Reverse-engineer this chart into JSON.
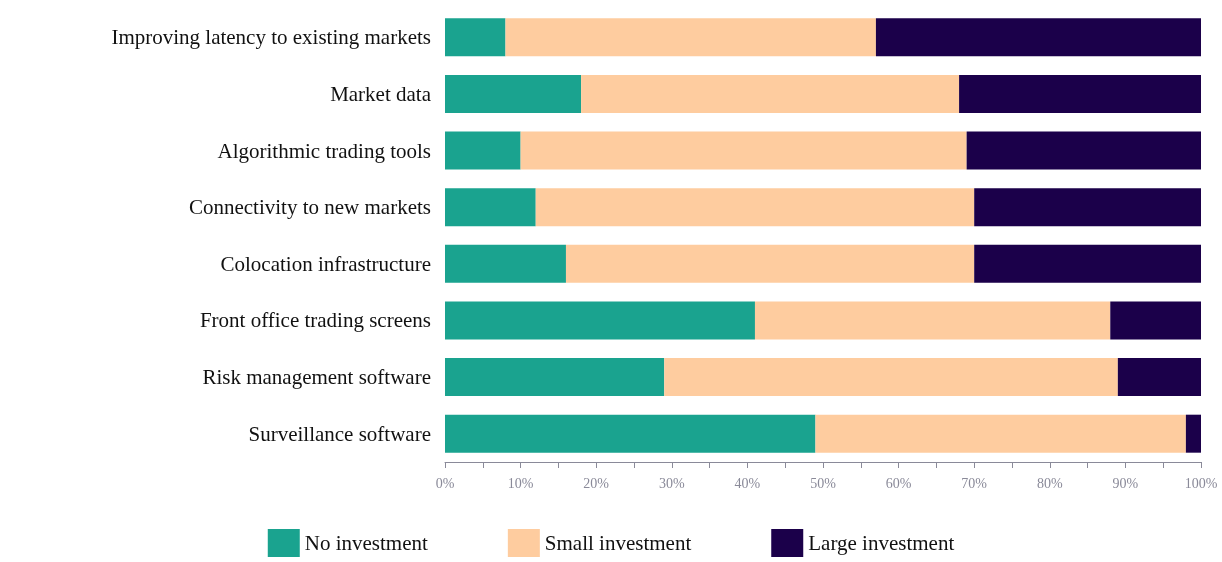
{
  "chart_data": {
    "type": "bar",
    "orientation": "horizontal",
    "stacked": true,
    "categories": [
      "Improving latency to existing markets",
      "Market data",
      "Algorithmic trading tools",
      "Connectivity to new markets",
      "Colocation infrastructure",
      "Front office trading screens",
      "Risk management software",
      "Surveillance software"
    ],
    "series": [
      {
        "name": "No investment",
        "color": "#1aa38f",
        "values": [
          8,
          18,
          10,
          12,
          16,
          41,
          29,
          49
        ]
      },
      {
        "name": "Small investment",
        "color": "#fecc9f",
        "values": [
          49,
          50,
          59,
          58,
          54,
          47,
          60,
          49
        ]
      },
      {
        "name": "Large investment",
        "color": "#1b004a",
        "values": [
          43,
          32,
          31,
          30,
          30,
          12,
          11,
          2
        ]
      }
    ],
    "xlim": [
      0,
      100
    ],
    "xticks": [
      {
        "value": 0,
        "label": "0%"
      },
      {
        "value": 5,
        "label": null
      },
      {
        "value": 10,
        "label": "10%"
      },
      {
        "value": 15,
        "label": null
      },
      {
        "value": 20,
        "label": "20%"
      },
      {
        "value": 25,
        "label": null
      },
      {
        "value": 30,
        "label": "30%"
      },
      {
        "value": 35,
        "label": null
      },
      {
        "value": 40,
        "label": "40%"
      },
      {
        "value": 45,
        "label": null
      },
      {
        "value": 50,
        "label": "50%"
      },
      {
        "value": 55,
        "label": null
      },
      {
        "value": 60,
        "label": "60%"
      },
      {
        "value": 65,
        "label": null
      },
      {
        "value": 70,
        "label": "70%"
      },
      {
        "value": 75,
        "label": null
      },
      {
        "value": 80,
        "label": "80%"
      },
      {
        "value": 85,
        "label": null
      },
      {
        "value": 90,
        "label": "90%"
      },
      {
        "value": 95,
        "label": null
      },
      {
        "value": 100,
        "label": "100%"
      }
    ],
    "grid": false,
    "legend": "bottom"
  }
}
